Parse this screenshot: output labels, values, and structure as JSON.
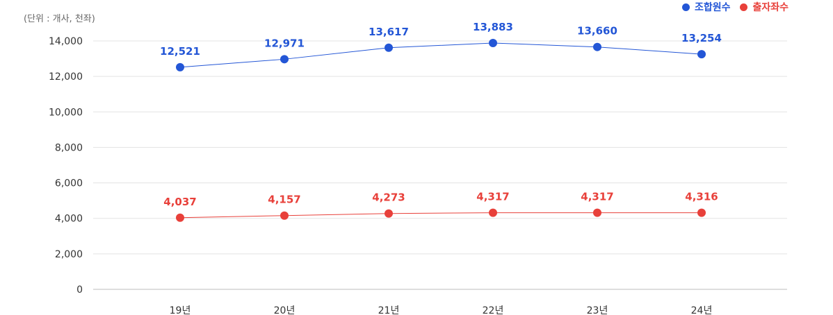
{
  "unit_note": "(단위 : 개사, 천좌)",
  "legend": [
    {
      "label": "조합원수",
      "color": "#2356d6"
    },
    {
      "label": "출자좌수",
      "color": "#e8403a"
    }
  ],
  "chart_data": {
    "type": "line",
    "categories": [
      "19년",
      "20년",
      "21년",
      "22년",
      "23년",
      "24년"
    ],
    "ylim": [
      0,
      14000
    ],
    "yticks": [
      "0",
      "2,000",
      "4,000",
      "6,000",
      "8,000",
      "10,000",
      "12,000",
      "14,000"
    ],
    "ytick_values": [
      0,
      2000,
      4000,
      6000,
      8000,
      10000,
      12000,
      14000
    ],
    "grid": true,
    "legend_position": "top-right",
    "series": [
      {
        "name": "조합원수",
        "color": "#2356d6",
        "values": [
          12521,
          12971,
          13617,
          13883,
          13660,
          13254
        ],
        "labels": [
          "12,521",
          "12,971",
          "13,617",
          "13,883",
          "13,660",
          "13,254"
        ]
      },
      {
        "name": "출자좌수",
        "color": "#e8403a",
        "values": [
          4037,
          4157,
          4273,
          4317,
          4317,
          4316
        ],
        "labels": [
          "4,037",
          "4,157",
          "4,273",
          "4,317",
          "4,317",
          "4,316"
        ]
      }
    ]
  }
}
